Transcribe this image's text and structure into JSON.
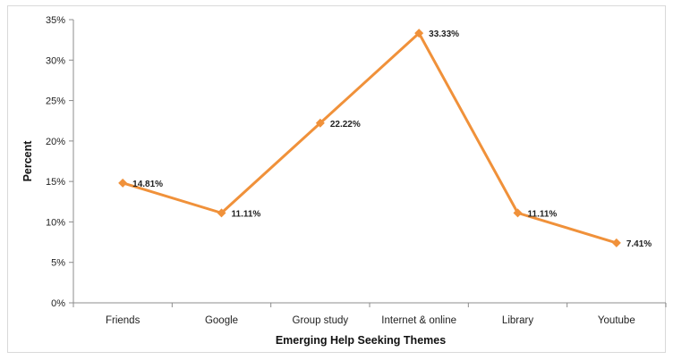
{
  "chart_data": {
    "type": "line",
    "title": "",
    "xlabel": "Emerging Help Seeking Themes",
    "ylabel": "Percent",
    "categories": [
      "Friends",
      "Google",
      "Group study",
      "Internet & online",
      "Library",
      "Youtube"
    ],
    "series": [
      {
        "values": [
          14.81,
          11.11,
          22.22,
          33.33,
          11.11,
          7.41
        ],
        "data_labels": [
          "14.81%",
          "11.11%",
          "22.22%",
          "33.33%",
          "11.11%",
          "7.41%"
        ],
        "color": "#f0913a"
      }
    ],
    "ylim": [
      0,
      35
    ],
    "yticks": [
      0,
      5,
      10,
      15,
      20,
      25,
      30,
      35
    ],
    "ytick_labels": [
      "0%",
      "5%",
      "10%",
      "15%",
      "20%",
      "25%",
      "30%",
      "35%"
    ],
    "grid": false,
    "legend": "none"
  }
}
